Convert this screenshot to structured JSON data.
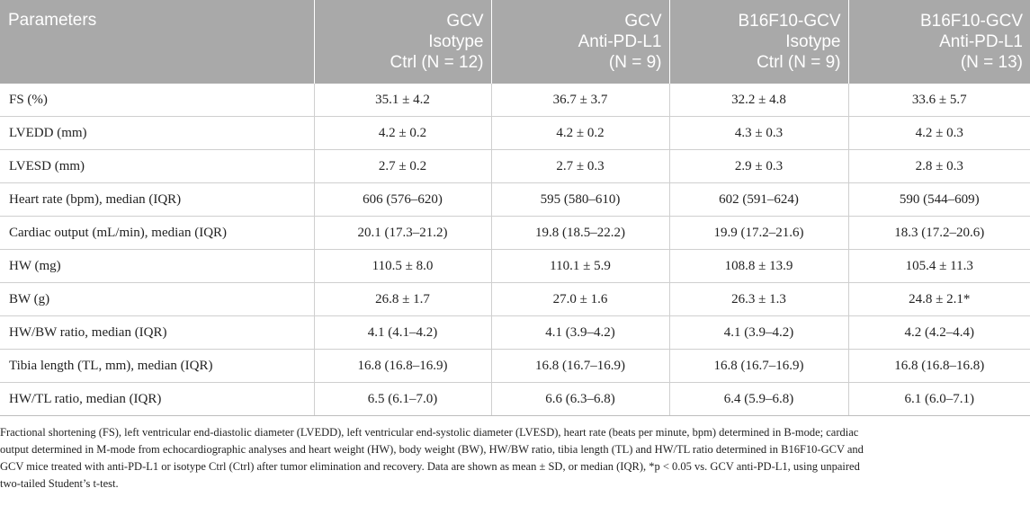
{
  "table": {
    "headers": [
      [
        "Parameters"
      ],
      [
        "GCV",
        "Isotype",
        "Ctrl (N = 12)"
      ],
      [
        "GCV",
        "Anti-PD-L1",
        "(N = 9)"
      ],
      [
        "B16F10-GCV",
        "Isotype",
        "Ctrl (N = 9)"
      ],
      [
        "B16F10-GCV",
        "Anti-PD-L1",
        "(N = 13)"
      ]
    ],
    "rows": [
      [
        "FS (%)",
        "35.1 ± 4.2",
        "36.7 ± 3.7",
        "32.2 ± 4.8",
        "33.6 ± 5.7"
      ],
      [
        "LVEDD (mm)",
        "4.2 ± 0.2",
        "4.2 ± 0.2",
        "4.3 ± 0.3",
        "4.2 ± 0.3"
      ],
      [
        "LVESD (mm)",
        "2.7 ± 0.2",
        "2.7 ± 0.3",
        "2.9 ± 0.3",
        "2.8 ± 0.3"
      ],
      [
        "Heart rate (bpm), median (IQR)",
        "606 (576–620)",
        "595 (580–610)",
        "602 (591–624)",
        "590 (544–609)"
      ],
      [
        "Cardiac output (mL/min), median (IQR)",
        "20.1 (17.3–21.2)",
        "19.8 (18.5–22.2)",
        "19.9 (17.2–21.6)",
        "18.3 (17.2–20.6)"
      ],
      [
        "HW (mg)",
        "110.5 ± 8.0",
        "110.1 ± 5.9",
        "108.8 ± 13.9",
        "105.4 ± 11.3"
      ],
      [
        "BW (g)",
        "26.8 ± 1.7",
        "27.0 ± 1.6",
        "26.3 ± 1.3",
        "24.8 ± 2.1*"
      ],
      [
        "HW/BW ratio, median (IQR)",
        "4.1 (4.1–4.2)",
        "4.1 (3.9–4.2)",
        "4.1 (3.9–4.2)",
        "4.2 (4.2–4.4)"
      ],
      [
        "Tibia length (TL, mm), median (IQR)",
        "16.8 (16.8–16.9)",
        "16.8 (16.7–16.9)",
        "16.8 (16.7–16.9)",
        "16.8 (16.8–16.8)"
      ],
      [
        "HW/TL ratio, median (IQR)",
        "6.5 (6.1–7.0)",
        "6.6 (6.3–6.8)",
        "6.4 (5.9–6.8)",
        "6.1 (6.0–7.1)"
      ]
    ]
  },
  "footnote": {
    "lines": [
      "Fractional shortening (FS), left ventricular end-diastolic diameter (LVEDD), left ventricular end-systolic diameter (LVESD), heart rate (beats per minute, bpm) determined in B-mode; cardiac",
      "output determined in M-mode from echocardiographic analyses and heart weight (HW), body weight (BW), HW/BW ratio, tibia length (TL) and HW/TL ratio determined in B16F10-GCV and",
      "GCV mice treated with anti-PD-L1 or isotype Ctrl (Ctrl) after tumor elimination and recovery. Data are shown as mean ± SD, or median (IQR), *p < 0.05 vs. GCV anti-PD-L1, using unpaired",
      "two-tailed Student’s t-test."
    ]
  },
  "colors": {
    "header_bg": "#a9a9a9",
    "header_text": "#ffffff",
    "grid": "#cfcfcf",
    "body_text": "#222222"
  }
}
